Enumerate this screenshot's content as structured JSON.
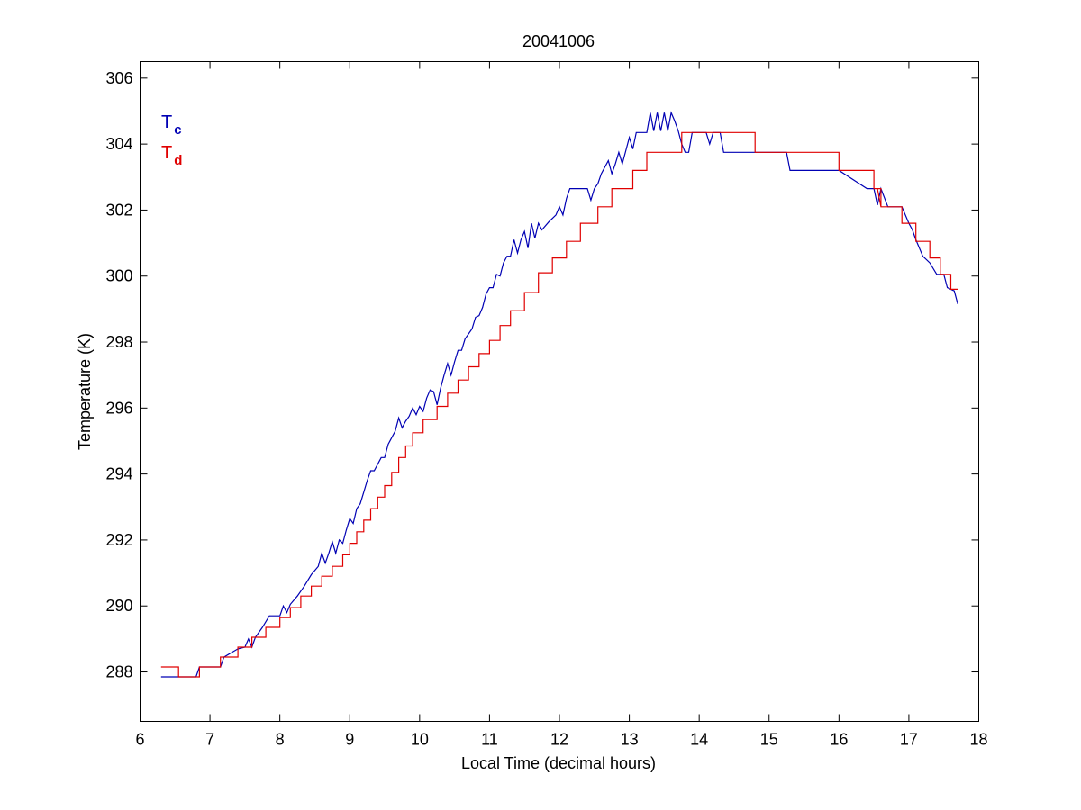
{
  "chart_data": {
    "type": "line",
    "title": "20041006",
    "xlabel": "Local Time (decimal hours)",
    "ylabel": "Temperature (K)",
    "xlim": [
      6,
      18
    ],
    "ylim": [
      286.5,
      306.5
    ],
    "xticks": [
      6,
      7,
      8,
      9,
      10,
      11,
      12,
      13,
      14,
      15,
      16,
      17,
      18
    ],
    "yticks": [
      288,
      290,
      292,
      294,
      296,
      298,
      300,
      302,
      304,
      306
    ],
    "grid": false,
    "legend": {
      "placement": "top-left",
      "entries": [
        {
          "base": "T",
          "sub": "c",
          "color": "#0000b4"
        },
        {
          "base": "T",
          "sub": "d",
          "color": "#e00000"
        }
      ]
    },
    "series": [
      {
        "color": "#0000b4",
        "x": [
          6.3,
          6.8,
          6.85,
          7.15,
          7.2,
          7.4,
          7.5,
          7.55,
          7.6,
          7.65,
          7.75,
          7.85,
          8.0,
          8.05,
          8.1,
          8.15,
          8.25,
          8.35,
          8.45,
          8.55,
          8.6,
          8.65,
          8.7,
          8.75,
          8.8,
          8.85,
          8.9,
          8.95,
          9.0,
          9.05,
          9.1,
          9.15,
          9.2,
          9.25,
          9.3,
          9.35,
          9.45,
          9.5,
          9.55,
          9.6,
          9.65,
          9.7,
          9.75,
          9.8,
          9.85,
          9.9,
          9.95,
          10.0,
          10.05,
          10.1,
          10.15,
          10.2,
          10.25,
          10.3,
          10.35,
          10.4,
          10.45,
          10.5,
          10.55,
          10.6,
          10.65,
          10.75,
          10.8,
          10.85,
          10.9,
          10.95,
          11.0,
          11.05,
          11.1,
          11.15,
          11.2,
          11.25,
          11.3,
          11.35,
          11.4,
          11.45,
          11.5,
          11.55,
          11.6,
          11.65,
          11.7,
          11.75,
          11.85,
          11.95,
          12.0,
          12.05,
          12.1,
          12.15,
          12.3,
          12.4,
          12.45,
          12.5,
          12.55,
          12.6,
          12.7,
          12.75,
          12.8,
          12.85,
          12.9,
          12.95,
          13.0,
          13.05,
          13.1,
          13.15,
          13.25,
          13.3,
          13.35,
          13.4,
          13.45,
          13.5,
          13.55,
          13.6,
          13.65,
          13.7,
          13.75,
          13.8,
          13.85,
          13.9,
          14.0,
          14.1,
          14.15,
          14.2,
          14.3,
          14.35,
          14.4,
          14.5,
          15.0,
          15.25,
          15.3,
          15.55,
          15.6,
          16.0,
          16.4,
          16.5,
          16.55,
          16.6,
          16.7,
          16.9,
          17.0,
          17.05,
          17.1,
          17.2,
          17.3,
          17.4,
          17.5,
          17.55,
          17.6,
          17.65,
          17.7
        ],
        "y": [
          287.85,
          287.85,
          288.15,
          288.15,
          288.45,
          288.7,
          288.75,
          289.0,
          288.75,
          289.05,
          289.35,
          289.7,
          289.7,
          290.0,
          289.8,
          290.05,
          290.3,
          290.6,
          290.95,
          291.2,
          291.6,
          291.3,
          291.6,
          291.95,
          291.6,
          292.0,
          291.9,
          292.3,
          292.65,
          292.5,
          292.95,
          293.1,
          293.45,
          293.8,
          294.1,
          294.1,
          294.5,
          294.5,
          294.9,
          295.1,
          295.3,
          295.7,
          295.4,
          295.6,
          295.75,
          296.0,
          295.8,
          296.05,
          295.9,
          296.3,
          296.55,
          296.5,
          296.1,
          296.6,
          297.0,
          297.35,
          297.0,
          297.4,
          297.75,
          297.75,
          298.1,
          298.4,
          298.75,
          298.8,
          299.05,
          299.45,
          299.65,
          299.65,
          300.05,
          300.0,
          300.4,
          300.6,
          300.6,
          301.1,
          300.7,
          301.1,
          301.35,
          300.85,
          301.6,
          301.15,
          301.6,
          301.4,
          301.65,
          301.85,
          302.1,
          301.85,
          302.35,
          302.65,
          302.65,
          302.65,
          302.3,
          302.65,
          302.8,
          303.1,
          303.5,
          303.1,
          303.4,
          303.75,
          303.4,
          303.8,
          304.2,
          303.85,
          304.35,
          304.35,
          304.35,
          304.95,
          304.4,
          304.95,
          304.4,
          304.95,
          304.4,
          304.95,
          304.7,
          304.4,
          304.0,
          303.75,
          303.75,
          304.35,
          304.35,
          304.35,
          304.0,
          304.35,
          304.35,
          303.75,
          303.75,
          303.75,
          303.75,
          303.75,
          303.2,
          303.2,
          303.2,
          303.2,
          302.65,
          302.65,
          302.15,
          302.65,
          302.1,
          302.1,
          301.6,
          301.4,
          301.1,
          300.6,
          300.4,
          300.05,
          300.05,
          299.65,
          299.6,
          299.55,
          299.15
        ]
      },
      {
        "color": "#e00000",
        "x": [
          6.3,
          6.55,
          6.55,
          6.85,
          6.85,
          7.15,
          7.15,
          7.4,
          7.4,
          7.6,
          7.6,
          7.8,
          7.8,
          8.0,
          8.0,
          8.15,
          8.15,
          8.3,
          8.3,
          8.45,
          8.45,
          8.6,
          8.6,
          8.75,
          8.75,
          8.9,
          8.9,
          9.0,
          9.0,
          9.1,
          9.1,
          9.2,
          9.2,
          9.3,
          9.3,
          9.4,
          9.4,
          9.5,
          9.5,
          9.6,
          9.6,
          9.7,
          9.7,
          9.8,
          9.8,
          9.9,
          9.9,
          10.05,
          10.05,
          10.25,
          10.25,
          10.4,
          10.4,
          10.55,
          10.55,
          10.7,
          10.7,
          10.85,
          10.85,
          11.0,
          11.0,
          11.15,
          11.15,
          11.3,
          11.3,
          11.5,
          11.5,
          11.7,
          11.7,
          11.9,
          11.9,
          12.1,
          12.1,
          12.3,
          12.3,
          12.55,
          12.55,
          12.75,
          12.75,
          13.05,
          13.05,
          13.25,
          13.25,
          13.75,
          13.75,
          14.8,
          14.8,
          16.0,
          16.0,
          16.5,
          16.5,
          16.6,
          16.6,
          16.55,
          16.6,
          16.9,
          16.9,
          17.1,
          17.1,
          17.3,
          17.3,
          17.45,
          17.45,
          17.6,
          17.6,
          17.7
        ],
        "y": [
          288.15,
          288.15,
          287.85,
          287.85,
          288.15,
          288.15,
          288.45,
          288.45,
          288.75,
          288.75,
          289.05,
          289.05,
          289.35,
          289.35,
          289.65,
          289.65,
          289.95,
          289.95,
          290.3,
          290.3,
          290.6,
          290.6,
          290.9,
          290.9,
          291.2,
          291.2,
          291.55,
          291.55,
          291.9,
          291.9,
          292.25,
          292.25,
          292.6,
          292.6,
          292.95,
          292.95,
          293.3,
          293.3,
          293.65,
          293.65,
          294.05,
          294.05,
          294.5,
          294.5,
          294.85,
          294.85,
          295.25,
          295.25,
          295.65,
          295.65,
          296.05,
          296.05,
          296.45,
          296.45,
          296.85,
          296.85,
          297.25,
          297.25,
          297.65,
          297.65,
          298.05,
          298.05,
          298.5,
          298.5,
          298.95,
          298.95,
          299.5,
          299.5,
          300.1,
          300.1,
          300.55,
          300.55,
          301.05,
          301.05,
          301.6,
          301.6,
          302.1,
          302.1,
          302.65,
          302.65,
          303.2,
          303.2,
          303.75,
          303.75,
          304.35,
          304.35,
          303.75,
          303.75,
          303.2,
          303.2,
          302.65,
          302.65,
          302.1,
          302.65,
          302.1,
          302.1,
          301.6,
          301.6,
          301.05,
          301.05,
          300.55,
          300.55,
          300.05,
          300.05,
          299.6,
          299.6
        ]
      }
    ]
  }
}
